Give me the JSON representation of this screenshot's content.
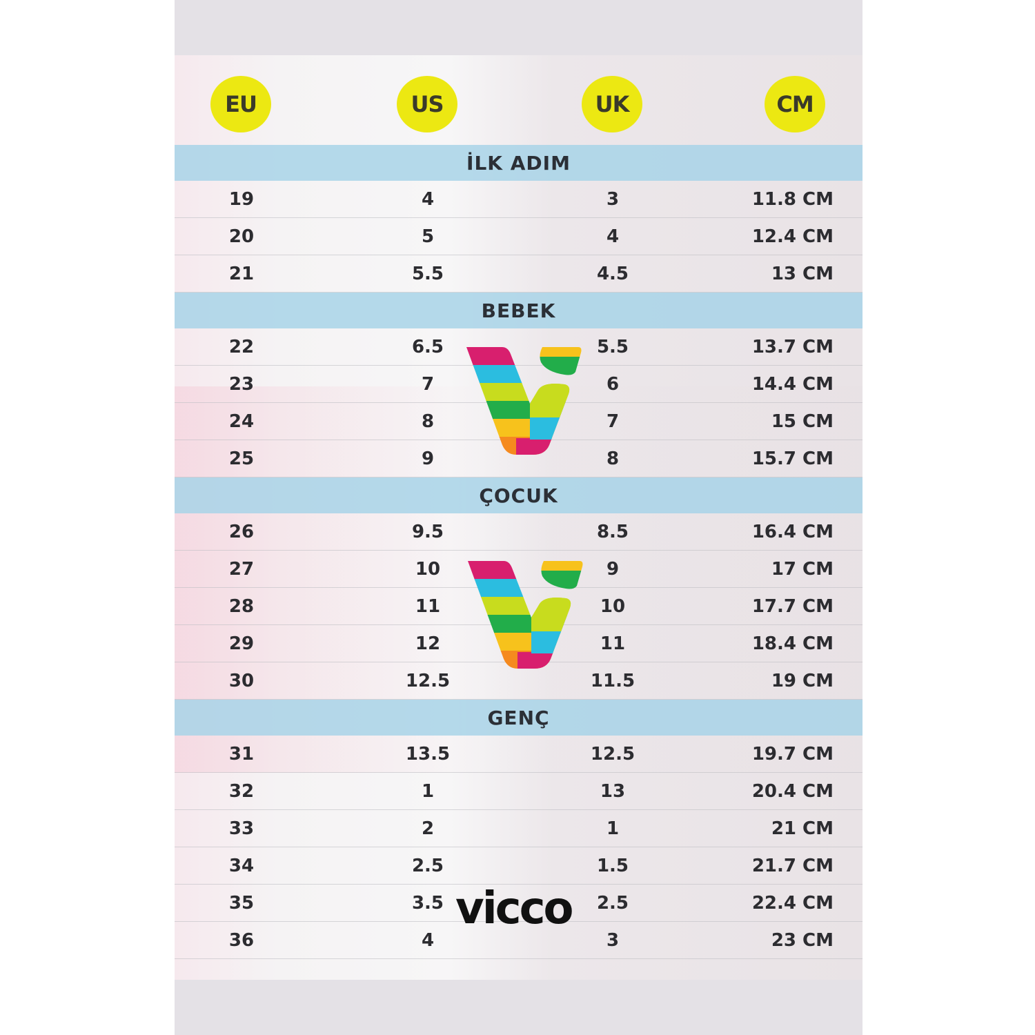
{
  "headers": [
    "EU",
    "US",
    "UK",
    "CM"
  ],
  "header_color": "#ece812",
  "band_color": "#a8d4e8",
  "sections": [
    {
      "title": "İLK ADIM",
      "rows": [
        [
          "19",
          "4",
          "3",
          "11.8 CM"
        ],
        [
          "20",
          "5",
          "4",
          "12.4 CM"
        ],
        [
          "21",
          "5.5",
          "4.5",
          "13 CM"
        ]
      ]
    },
    {
      "title": "BEBEK",
      "rows": [
        [
          "22",
          "6.5",
          "5.5",
          "13.7 CM"
        ],
        [
          "23",
          "7",
          "6",
          "14.4 CM"
        ],
        [
          "24",
          "8",
          "7",
          "15 CM"
        ],
        [
          "25",
          "9",
          "8",
          "15.7 CM"
        ]
      ]
    },
    {
      "title": "ÇOCUK",
      "rows": [
        [
          "26",
          "9.5",
          "8.5",
          "16.4 CM"
        ],
        [
          "27",
          "10",
          "9",
          "17 CM"
        ],
        [
          "28",
          "11",
          "10",
          "17.7 CM"
        ],
        [
          "29",
          "12",
          "11",
          "18.4 CM"
        ],
        [
          "30",
          "12.5",
          "11.5",
          "19 CM"
        ]
      ]
    },
    {
      "title": "GENÇ",
      "rows": [
        [
          "31",
          "13.5",
          "12.5",
          "19.7 CM"
        ],
        [
          "32",
          "1",
          "13",
          "20.4 CM"
        ],
        [
          "33",
          "2",
          "1",
          "21 CM"
        ],
        [
          "34",
          "2.5",
          "1.5",
          "21.7 CM"
        ],
        [
          "35",
          "3.5",
          "2.5",
          "22.4 CM"
        ],
        [
          "36",
          "4",
          "3",
          "23 CM"
        ]
      ]
    }
  ],
  "brand": {
    "name": "vicco",
    "logo_stripe_colors": [
      "#d81f6e",
      "#2bbde0",
      "#c8dc1e",
      "#22ad4a",
      "#f7c21c",
      "#f58a1f"
    ]
  }
}
